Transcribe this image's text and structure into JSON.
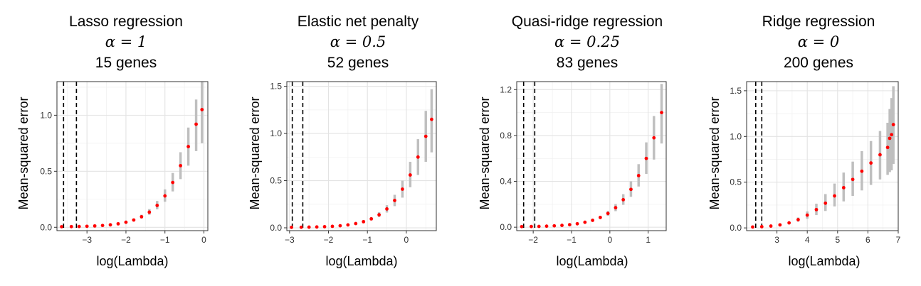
{
  "panels": [
    {
      "title": "Lasso regression",
      "alpha": "α = 1",
      "genes": "15 genes"
    },
    {
      "title": "Elastic net penalty",
      "alpha": "α = 0.5",
      "genes": "52 genes"
    },
    {
      "title": "Quasi-ridge regression",
      "alpha": "α = 0.25",
      "genes": "83 genes"
    },
    {
      "title": "Ridge regression",
      "alpha": "α = 0",
      "genes": "200 genes"
    }
  ],
  "chart_data": [
    {
      "type": "scatter",
      "title": "Lasso regression",
      "xlabel": "log(Lambda)",
      "ylabel": "Mean-squared error",
      "xlim": [
        -3.77,
        0.1
      ],
      "ylim": [
        -0.03,
        1.3
      ],
      "xticks": [
        -3,
        -2,
        -1,
        0
      ],
      "yticks": [
        0.0,
        0.5,
        1.0
      ],
      "x": [
        -3.65,
        -3.4,
        -3.2,
        -3.0,
        -2.8,
        -2.6,
        -2.4,
        -2.2,
        -2.0,
        -1.8,
        -1.6,
        -1.4,
        -1.2,
        -1.0,
        -0.8,
        -0.6,
        -0.4,
        -0.2,
        -0.05
      ],
      "y": [
        0.005,
        0.006,
        0.007,
        0.009,
        0.012,
        0.016,
        0.022,
        0.031,
        0.045,
        0.065,
        0.094,
        0.135,
        0.195,
        0.28,
        0.4,
        0.55,
        0.72,
        0.92,
        1.05
      ],
      "error_band": {
        "lower": [
          0.005,
          0.006,
          0.007,
          0.009,
          0.011,
          0.014,
          0.019,
          0.027,
          0.039,
          0.055,
          0.079,
          0.112,
          0.16,
          0.228,
          0.32,
          0.43,
          0.55,
          0.68,
          0.75
        ],
        "upper": [
          0.006,
          0.007,
          0.008,
          0.01,
          0.014,
          0.019,
          0.026,
          0.037,
          0.053,
          0.077,
          0.112,
          0.162,
          0.235,
          0.338,
          0.485,
          0.67,
          0.89,
          1.14,
          1.3
        ]
      },
      "vlines": [
        -3.6,
        -3.27
      ],
      "grid": true,
      "point_color": "#ff0000",
      "band_color": "#bfbfbf"
    },
    {
      "type": "scatter",
      "title": "Elastic net penalty",
      "xlabel": "log(Lambda)",
      "ylabel": "Mean-squared error",
      "xlim": [
        -3.07,
        0.77
      ],
      "ylim": [
        -0.03,
        1.55
      ],
      "xticks": [
        -3,
        -2,
        -1,
        0
      ],
      "yticks": [
        0.0,
        0.5,
        1.0,
        1.5
      ],
      "x": [
        -2.95,
        -2.7,
        -2.5,
        -2.3,
        -2.1,
        -1.9,
        -1.7,
        -1.5,
        -1.3,
        -1.1,
        -0.9,
        -0.7,
        -0.5,
        -0.3,
        -0.1,
        0.1,
        0.3,
        0.5,
        0.65
      ],
      "y": [
        0.005,
        0.006,
        0.007,
        0.009,
        0.012,
        0.016,
        0.022,
        0.031,
        0.045,
        0.065,
        0.095,
        0.138,
        0.2,
        0.29,
        0.41,
        0.56,
        0.75,
        0.97,
        1.15
      ],
      "error_band": {
        "lower": [
          0.005,
          0.006,
          0.007,
          0.009,
          0.011,
          0.014,
          0.019,
          0.027,
          0.039,
          0.055,
          0.08,
          0.114,
          0.162,
          0.23,
          0.32,
          0.43,
          0.56,
          0.7,
          0.8
        ],
        "upper": [
          0.006,
          0.007,
          0.008,
          0.01,
          0.014,
          0.019,
          0.026,
          0.037,
          0.053,
          0.077,
          0.113,
          0.165,
          0.24,
          0.35,
          0.5,
          0.7,
          0.94,
          1.24,
          1.47
        ]
      },
      "vlines": [
        -2.93,
        -2.66
      ],
      "grid": true,
      "point_color": "#ff0000",
      "band_color": "#bfbfbf"
    },
    {
      "type": "scatter",
      "title": "Quasi-ridge regression",
      "xlabel": "log(Lambda)",
      "ylabel": "Mean-squared error",
      "xlim": [
        -2.43,
        1.47
      ],
      "ylim": [
        -0.03,
        1.27
      ],
      "xticks": [
        -2,
        -1,
        0,
        1
      ],
      "yticks": [
        0.0,
        0.4,
        0.8,
        1.2
      ],
      "x": [
        -2.3,
        -2.05,
        -1.85,
        -1.65,
        -1.45,
        -1.25,
        -1.05,
        -0.85,
        -0.65,
        -0.45,
        -0.25,
        -0.05,
        0.15,
        0.35,
        0.55,
        0.75,
        0.95,
        1.15,
        1.35
      ],
      "y": [
        0.005,
        0.006,
        0.007,
        0.009,
        0.012,
        0.016,
        0.022,
        0.03,
        0.043,
        0.06,
        0.085,
        0.12,
        0.17,
        0.24,
        0.33,
        0.45,
        0.6,
        0.78,
        1.0
      ],
      "error_band": {
        "lower": [
          0.005,
          0.006,
          0.007,
          0.009,
          0.011,
          0.014,
          0.019,
          0.026,
          0.037,
          0.051,
          0.072,
          0.1,
          0.14,
          0.195,
          0.265,
          0.355,
          0.465,
          0.59,
          0.73
        ],
        "upper": [
          0.006,
          0.007,
          0.008,
          0.01,
          0.014,
          0.019,
          0.026,
          0.036,
          0.051,
          0.071,
          0.1,
          0.142,
          0.202,
          0.288,
          0.4,
          0.55,
          0.74,
          0.97,
          1.25
        ]
      },
      "vlines": [
        -2.25,
        -1.96
      ],
      "grid": true,
      "point_color": "#ff0000",
      "band_color": "#bfbfbf"
    },
    {
      "type": "scatter",
      "title": "Ridge regression",
      "xlabel": "log(Lambda)",
      "ylabel": "Mean-squared error",
      "xlim": [
        2.0,
        7.0
      ],
      "ylim": [
        -0.03,
        1.6
      ],
      "xticks": [
        3,
        4,
        5,
        6,
        7
      ],
      "yticks": [
        0.0,
        0.5,
        1.0,
        1.5
      ],
      "x": [
        2.2,
        2.5,
        2.8,
        3.1,
        3.4,
        3.7,
        4.0,
        4.3,
        4.6,
        4.9,
        5.2,
        5.5,
        5.8,
        6.1,
        6.4,
        6.65,
        6.72,
        6.78,
        6.84
      ],
      "y": [
        0.01,
        0.013,
        0.02,
        0.033,
        0.055,
        0.09,
        0.14,
        0.2,
        0.27,
        0.35,
        0.44,
        0.53,
        0.62,
        0.71,
        0.8,
        0.88,
        0.98,
        1.02,
        1.13
      ],
      "error_band": {
        "lower": [
          0.009,
          0.012,
          0.017,
          0.027,
          0.043,
          0.068,
          0.1,
          0.14,
          0.185,
          0.235,
          0.29,
          0.35,
          0.41,
          0.47,
          0.53,
          0.58,
          0.61,
          0.63,
          0.7
        ],
        "upper": [
          0.011,
          0.015,
          0.024,
          0.041,
          0.069,
          0.114,
          0.18,
          0.265,
          0.37,
          0.485,
          0.605,
          0.725,
          0.84,
          0.95,
          1.06,
          1.15,
          1.3,
          1.42,
          1.55
        ]
      },
      "vlines": [
        2.3,
        2.5
      ],
      "grid": true,
      "point_color": "#ff0000",
      "band_color": "#bfbfbf"
    }
  ]
}
